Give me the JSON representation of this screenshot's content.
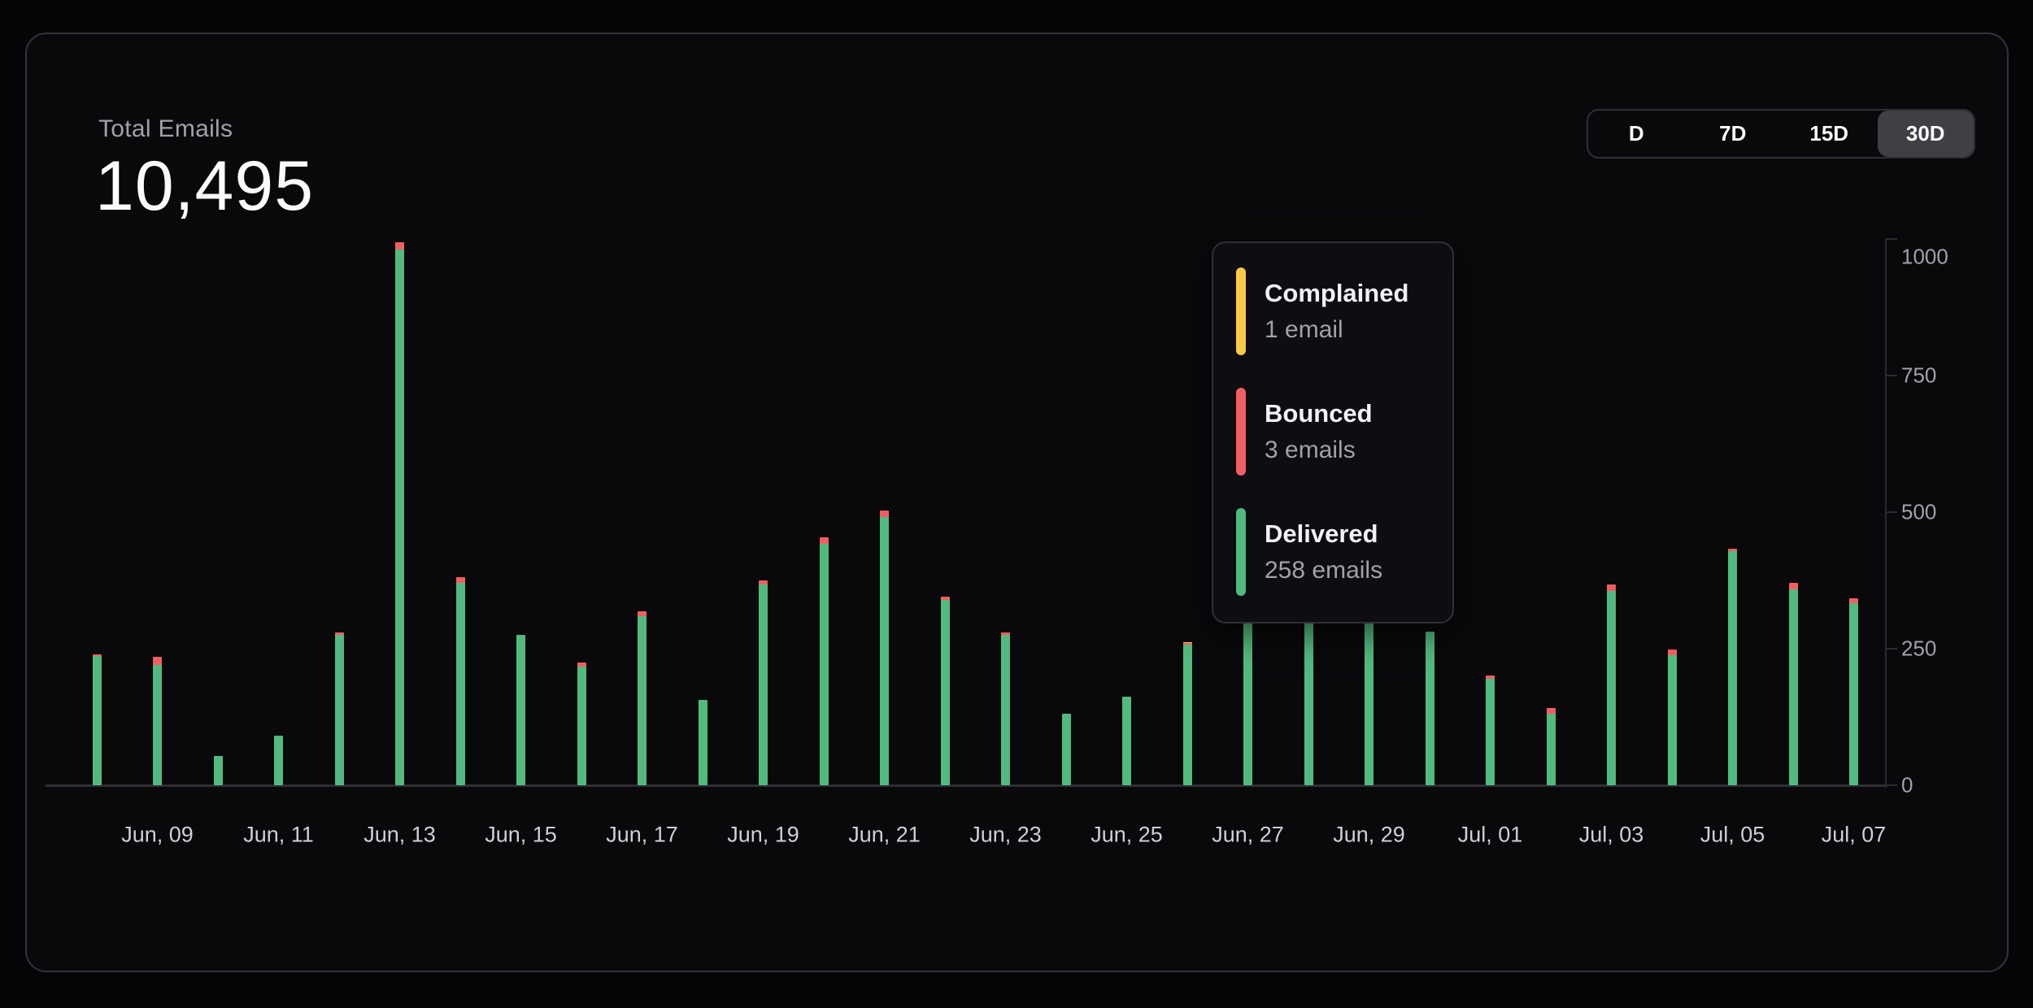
{
  "header": {
    "title": "Total Emails",
    "value": "10,495"
  },
  "range_selector": {
    "options": [
      {
        "label": "D",
        "selected": false
      },
      {
        "label": "7D",
        "selected": false
      },
      {
        "label": "15D",
        "selected": false
      },
      {
        "label": "30D",
        "selected": true
      }
    ]
  },
  "tooltip": {
    "items": [
      {
        "label": "Complained",
        "value": "1 email",
        "color": "#fbc94a"
      },
      {
        "label": "Bounced",
        "value": "3 emails",
        "color": "#f15f62"
      },
      {
        "label": "Delivered",
        "value": "258 emails",
        "color": "#53ba7f"
      }
    ]
  },
  "chart_data": {
    "type": "bar",
    "stacked": true,
    "title": "Total Emails",
    "total_label": "10,495",
    "categories": [
      "Jun, 08",
      "Jun, 09",
      "Jun, 10",
      "Jun, 11",
      "Jun, 12",
      "Jun, 13",
      "Jun, 14",
      "Jun, 15",
      "Jun, 16",
      "Jun, 17",
      "Jun, 18",
      "Jun, 19",
      "Jun, 20",
      "Jun, 21",
      "Jun, 22",
      "Jun, 23",
      "Jun, 24",
      "Jun, 25",
      "Jun, 26",
      "Jun, 27",
      "Jun, 28",
      "Jun, 29",
      "Jun, 30",
      "Jul, 01",
      "Jul, 02",
      "Jul, 03",
      "Jul, 04",
      "Jul, 05",
      "Jul, 06",
      "Jul, 07"
    ],
    "series": [
      {
        "name": "Delivered",
        "color": "#53ba7f",
        "values": [
          237,
          220,
          54,
          91,
          275,
          980,
          371,
          275,
          217,
          310,
          156,
          367,
          442,
          491,
          339,
          275,
          131,
          162,
          258,
          712,
          927,
          694,
          281,
          195,
          131,
          355,
          238,
          428,
          358,
          334
        ]
      },
      {
        "name": "Bounced",
        "color": "#f15f62",
        "values": [
          3,
          15,
          0,
          0,
          5,
          14,
          10,
          0,
          8,
          8,
          0,
          8,
          12,
          12,
          6,
          5,
          0,
          0,
          3,
          6,
          6,
          6,
          0,
          6,
          10,
          12,
          10,
          5,
          12,
          8
        ]
      },
      {
        "name": "Complained",
        "color": "#fbc94a",
        "values": [
          0,
          0,
          0,
          0,
          0,
          0,
          0,
          0,
          0,
          0,
          0,
          0,
          0,
          0,
          0,
          0,
          0,
          0,
          1,
          0,
          0,
          0,
          0,
          0,
          0,
          0,
          0,
          0,
          0,
          0
        ]
      }
    ],
    "x_tick_labels": [
      "Jun, 09",
      "Jun, 11",
      "Jun, 13",
      "Jun, 15",
      "Jun, 17",
      "Jun, 19",
      "Jun, 21",
      "Jun, 23",
      "Jun, 25",
      "Jun, 27",
      "Jun, 29",
      "Jul, 01",
      "Jul, 03",
      "Jul, 05",
      "Jul, 07"
    ],
    "y_ticks": [
      0,
      250,
      500,
      750,
      1000
    ],
    "ylim": [
      0,
      1000
    ],
    "grid": false,
    "y_axis_side": "right",
    "hovered_category": "Jun, 26"
  }
}
